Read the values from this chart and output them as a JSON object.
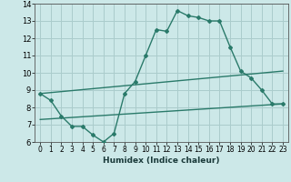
{
  "xlabel": "Humidex (Indice chaleur)",
  "background_color": "#cce8e8",
  "grid_color": "#aacccc",
  "line_color": "#2a7a6a",
  "xlim": [
    -0.5,
    23.5
  ],
  "ylim": [
    6,
    14
  ],
  "xticks": [
    0,
    1,
    2,
    3,
    4,
    5,
    6,
    7,
    8,
    9,
    10,
    11,
    12,
    13,
    14,
    15,
    16,
    17,
    18,
    19,
    20,
    21,
    22,
    23
  ],
  "yticks": [
    6,
    7,
    8,
    9,
    10,
    11,
    12,
    13,
    14
  ],
  "line1_x": [
    0,
    1,
    2,
    3,
    4,
    5,
    6,
    7,
    8,
    9,
    10,
    11,
    12,
    13,
    14,
    15,
    16,
    17,
    18,
    19,
    20,
    21,
    22,
    23
  ],
  "line1_y": [
    8.8,
    8.4,
    7.5,
    6.9,
    6.9,
    6.4,
    6.0,
    6.5,
    8.8,
    9.5,
    11.0,
    12.5,
    12.4,
    13.6,
    13.3,
    13.2,
    13.0,
    13.0,
    11.5,
    10.1,
    9.7,
    9.0,
    8.2,
    8.2
  ],
  "line2_x": [
    0,
    23
  ],
  "line2_y": [
    8.8,
    10.1
  ],
  "line3_x": [
    0,
    23
  ],
  "line3_y": [
    7.3,
    8.2
  ]
}
